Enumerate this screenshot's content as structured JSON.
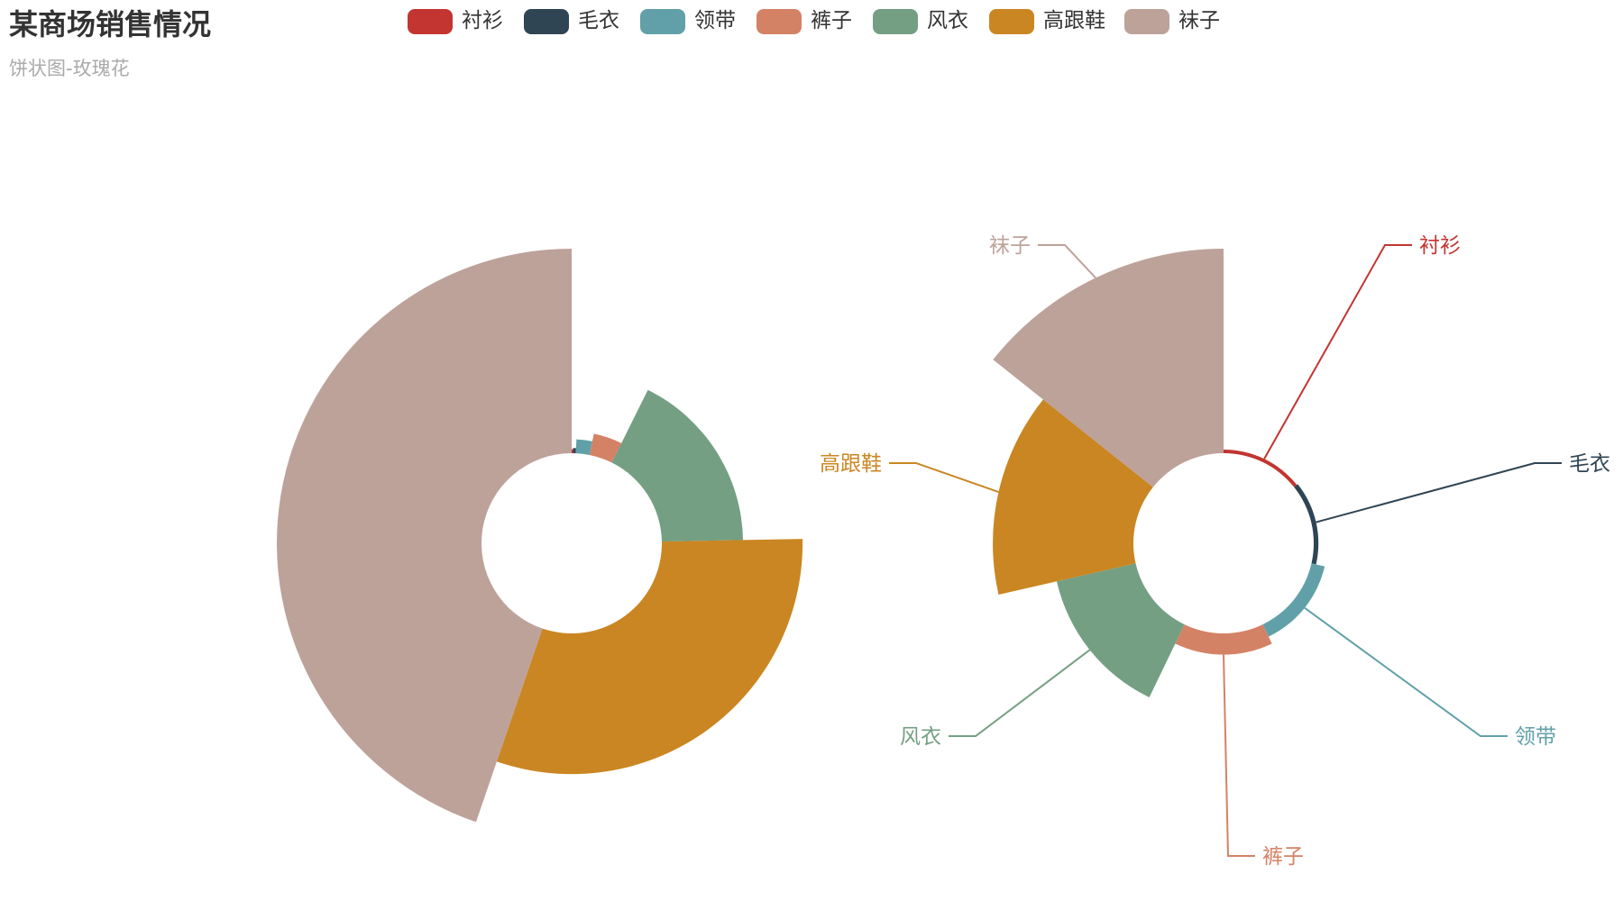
{
  "title": "某商场销售情况",
  "subtitle": "饼状图-玫瑰花",
  "chart_data": [
    {
      "type": "pie",
      "rose_type": "radius",
      "categories": [
        "衬衫",
        "毛衣",
        "领带",
        "裤子",
        "风衣",
        "高跟鞋",
        "袜子"
      ],
      "values": [
        1,
        2,
        10,
        17,
        71,
        125,
        183
      ],
      "colors": [
        "#c23531",
        "#2f4554",
        "#61a0a8",
        "#d48265",
        "#749f83",
        "#ca8622",
        "#bda29a"
      ],
      "labels_shown": false
    },
    {
      "type": "pie",
      "rose_type": "area",
      "categories": [
        "衬衫",
        "毛衣",
        "领带",
        "裤子",
        "风衣",
        "高跟鞋",
        "袜子"
      ],
      "values": [
        1,
        2,
        10,
        17,
        71,
        125,
        183
      ],
      "colors": [
        "#c23531",
        "#2f4554",
        "#61a0a8",
        "#d48265",
        "#749f83",
        "#ca8622",
        "#bda29a"
      ],
      "labels_shown": true
    }
  ],
  "legend": {
    "items": [
      "衬衫",
      "毛衣",
      "领带",
      "裤子",
      "风衣",
      "高跟鞋",
      "袜子"
    ],
    "placement": "top-center"
  }
}
